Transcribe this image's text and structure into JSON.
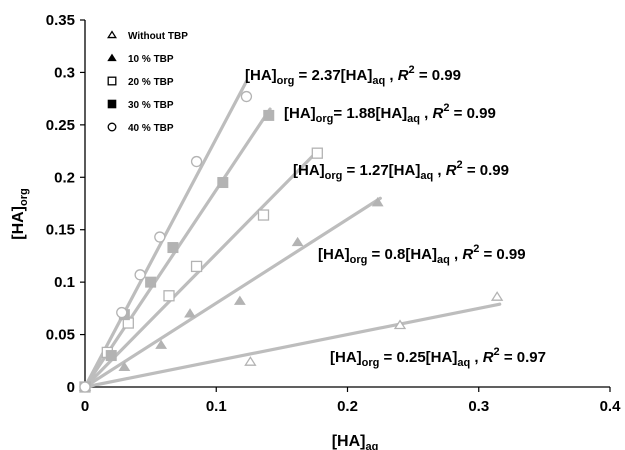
{
  "chart_data": {
    "type": "scatter",
    "xlabel_main": "[HA]",
    "xlabel_sub": "aq",
    "ylabel_main": "[HA]",
    "ylabel_sub": "org",
    "xlim": [
      0,
      0.4
    ],
    "ylim": [
      0,
      0.35
    ],
    "x_ticks": [
      "0",
      "0.1",
      "0.2",
      "0.3",
      "0.4"
    ],
    "y_ticks": [
      "0",
      "0.05",
      "0.1",
      "0.15",
      "0.2",
      "0.25",
      "0.3",
      "0.35"
    ],
    "grid": false,
    "legend_position": "top-left",
    "series": [
      {
        "name": "Without TBP",
        "marker": "triangle-open",
        "points": [
          [
            0.0,
            0.0
          ],
          [
            0.126,
            0.024
          ],
          [
            0.24,
            0.059
          ],
          [
            0.314,
            0.086
          ]
        ],
        "fit": {
          "slope": 0.25,
          "x_end": 0.316
        },
        "equation": {
          "coef": "0.25",
          "r2": "0.97"
        }
      },
      {
        "name": "10 % TBP",
        "marker": "triangle-filled",
        "points": [
          [
            0.0,
            0.0
          ],
          [
            0.03,
            0.019
          ],
          [
            0.058,
            0.04
          ],
          [
            0.08,
            0.07
          ],
          [
            0.118,
            0.082
          ],
          [
            0.162,
            0.138
          ],
          [
            0.223,
            0.176
          ]
        ],
        "fit": {
          "slope": 0.8,
          "x_end": 0.225
        },
        "equation": {
          "coef": "0.8",
          "r2": "0.99"
        }
      },
      {
        "name": "20 % TBP",
        "marker": "square-open",
        "points": [
          [
            0.0,
            0.0
          ],
          [
            0.017,
            0.033
          ],
          [
            0.033,
            0.061
          ],
          [
            0.064,
            0.087
          ],
          [
            0.085,
            0.115
          ],
          [
            0.136,
            0.164
          ],
          [
            0.177,
            0.223
          ]
        ],
        "fit": {
          "slope": 1.27,
          "x_end": 0.178
        },
        "equation": {
          "coef": "1.27",
          "r2": "0.99"
        }
      },
      {
        "name": "30 % TBP",
        "marker": "square-filled",
        "points": [
          [
            0.0,
            0.0
          ],
          [
            0.02,
            0.03
          ],
          [
            0.03,
            0.069
          ],
          [
            0.05,
            0.1
          ],
          [
            0.067,
            0.133
          ],
          [
            0.105,
            0.195
          ],
          [
            0.14,
            0.259
          ]
        ],
        "fit": {
          "slope": 1.88,
          "x_end": 0.141
        },
        "equation": {
          "coef": "1.88",
          "r2": "0.99"
        }
      },
      {
        "name": "40 % TBP",
        "marker": "circle-open",
        "points": [
          [
            0.0,
            0.0
          ],
          [
            0.028,
            0.071
          ],
          [
            0.042,
            0.107
          ],
          [
            0.057,
            0.143
          ],
          [
            0.085,
            0.215
          ],
          [
            0.123,
            0.277
          ]
        ],
        "fit": {
          "slope": 2.37,
          "x_end": 0.123
        },
        "equation": {
          "coef": "2.37",
          "r2": "0.99"
        }
      }
    ],
    "equation_labels": [
      {
        "series": 4,
        "prefix": "[HA]",
        "org": "org",
        "mid": " = 2.37[HA]",
        "aq": "aq",
        "sep": " ,  ",
        "r": "R",
        "sup": "2",
        "tail": " = 0.99"
      },
      {
        "series": 3,
        "prefix": "[HA]",
        "org": "org",
        "mid": "= 1.88[HA]",
        "aq": "aq",
        "sep": " ,  ",
        "r": "R",
        "sup": "2",
        "tail": " = 0.99"
      },
      {
        "series": 2,
        "prefix": "[HA]",
        "org": "org",
        "mid": " = 1.27[HA]",
        "aq": "aq",
        "sep": " ,  ",
        "r": "R",
        "sup": "2",
        "tail": " = 0.99"
      },
      {
        "series": 1,
        "prefix": "[HA]",
        "org": "org",
        "mid": " = 0.8[HA]",
        "aq": "aq",
        "sep": " , ",
        "r": "R",
        "sup": "2",
        "tail": " = 0.99"
      },
      {
        "series": 0,
        "prefix": "[HA]",
        "org": "org",
        "mid": " = 0.25[HA]",
        "aq": "aq",
        "sep": " , ",
        "r": "R",
        "sup": "2",
        "tail": " = 0.97"
      }
    ],
    "colors": {
      "fit_line": "#bdbdbd",
      "marker": "#b3b3b3",
      "axis": "#000000",
      "legend_marker": "#000000"
    }
  }
}
